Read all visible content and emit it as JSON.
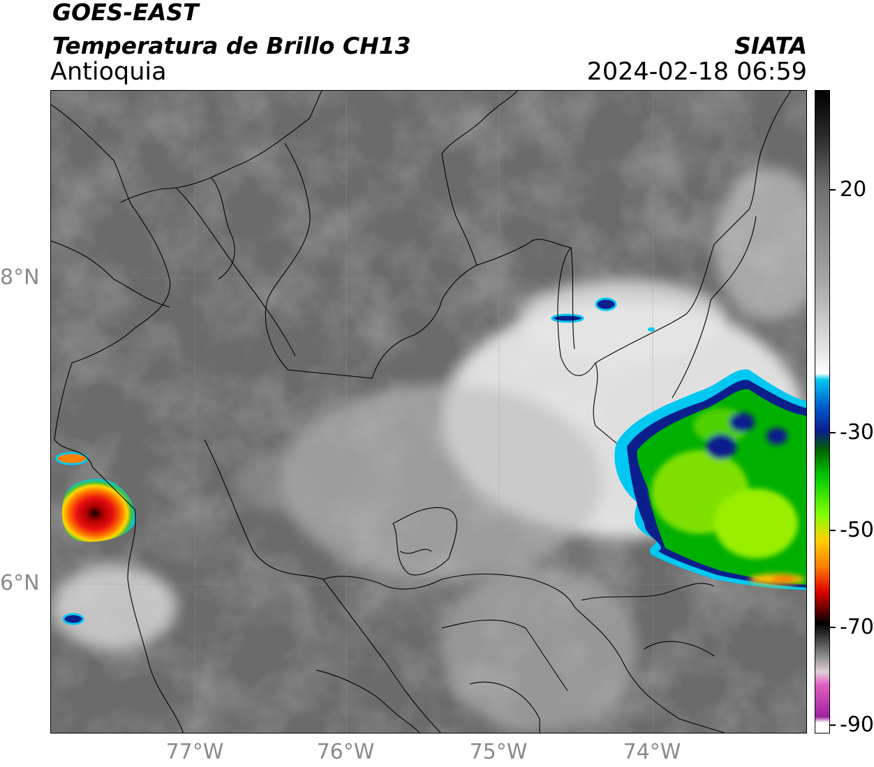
{
  "header": {
    "satellite": "GOES-EAST",
    "product": "Temperatura de Brillo CH13",
    "region": "Antioquia",
    "agency": "SIATA",
    "datetime": "2024-02-18 06:59"
  },
  "axes": {
    "x_ticks": [
      {
        "label": "77°W",
        "lon": -77
      },
      {
        "label": "76°W",
        "lon": -76
      },
      {
        "label": "75°W",
        "lon": -75
      },
      {
        "label": "74°W",
        "lon": -74
      }
    ],
    "y_ticks": [
      {
        "label": "8°N",
        "lat": 8
      },
      {
        "label": "6°N",
        "lat": 6
      }
    ],
    "lon_range": [
      -77.95,
      -73.05
    ],
    "lat_range": [
      5.0,
      9.2
    ]
  },
  "colorbar": {
    "ticks": [
      {
        "label": "20",
        "value": 20
      },
      {
        "label": "-30",
        "value": -30
      },
      {
        "label": "-50",
        "value": -50
      },
      {
        "label": "-70",
        "value": -70
      },
      {
        "label": "-90",
        "value": -90
      }
    ],
    "range": [
      -90,
      38
    ],
    "colors": {
      "cyan": "#00c8f0",
      "navy": "#0a1e8c",
      "green": "#00c800",
      "lime": "#7fff00",
      "yellow": "#ffd000",
      "red": "#e00000",
      "black": "#000000",
      "pink": "#e060c0",
      "purple": "#a020a0"
    }
  },
  "map": {
    "background": "grayscale brightness temperature",
    "features": [
      "coastline",
      "department boundaries",
      "graticule"
    ],
    "cloud_top_min_c": -70
  }
}
